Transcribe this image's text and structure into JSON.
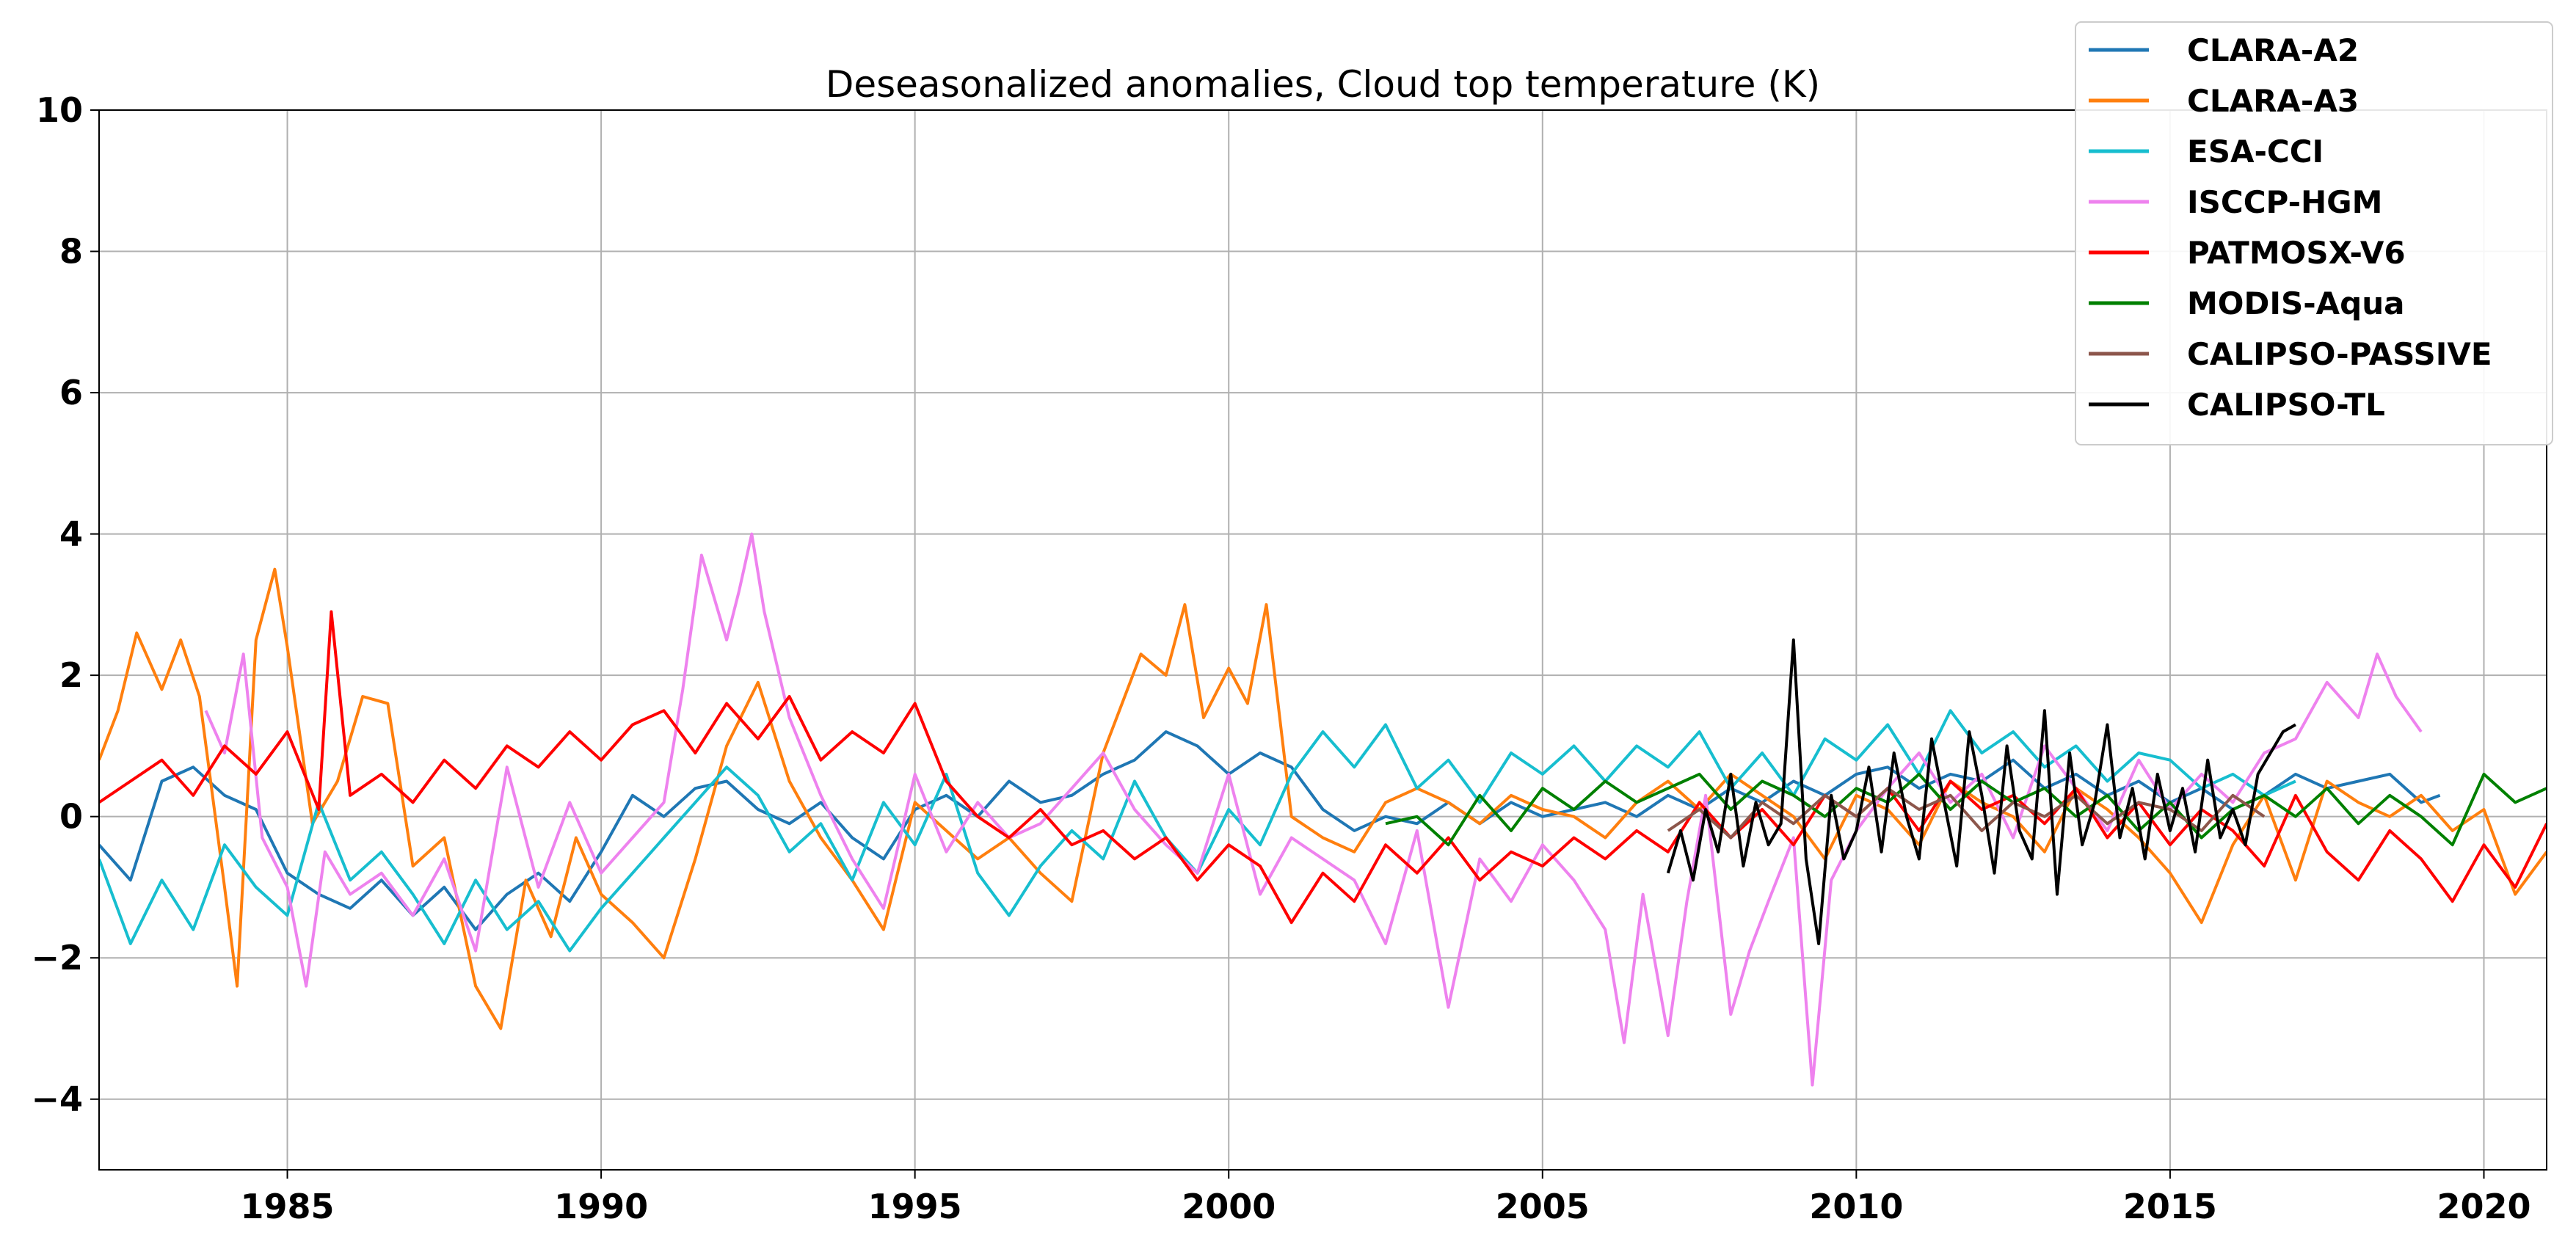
{
  "chart_data": {
    "type": "line",
    "title": "Deseasonalized anomalies, Cloud top temperature (K)",
    "xlabel": "",
    "ylabel": "",
    "xlim": [
      1982.0,
      2021.0
    ],
    "ylim": [
      -5,
      10
    ],
    "xticks": [
      1985,
      1990,
      1995,
      2000,
      2005,
      2010,
      2015,
      2020
    ],
    "yticks": [
      -4,
      -2,
      0,
      2,
      4,
      6,
      8,
      10
    ],
    "grid": true,
    "legend_position": "top-right",
    "series": [
      {
        "name": "CLARA-A2",
        "color": "#1f77b4",
        "x": [
          1982.0,
          1982.5,
          1983.0,
          1983.5,
          1984.0,
          1984.5,
          1985.0,
          1985.5,
          1986.0,
          1986.5,
          1987.0,
          1987.5,
          1988.0,
          1988.5,
          1989.0,
          1989.5,
          1990.0,
          1990.5,
          1991.0,
          1991.5,
          1992.0,
          1992.5,
          1993.0,
          1993.5,
          1994.0,
          1994.5,
          1995.0,
          1995.5,
          1996.0,
          1996.5,
          1997.0,
          1997.5,
          1998.0,
          1998.5,
          1999.0,
          1999.5,
          2000.0,
          2000.5,
          2001.0,
          2001.5,
          2002.0,
          2002.5,
          2003.0,
          2003.5,
          2004.0,
          2004.5,
          2005.0,
          2005.5,
          2006.0,
          2006.5,
          2007.0,
          2007.5,
          2008.0,
          2008.5,
          2009.0,
          2009.5,
          2010.0,
          2010.5,
          2011.0,
          2011.5,
          2012.0,
          2012.5,
          2013.0,
          2013.5,
          2014.0,
          2014.5,
          2015.0,
          2015.5,
          2016.0,
          2016.5,
          2017.0,
          2017.5,
          2018.0,
          2018.5,
          2019.0,
          2019.3
        ],
        "y": [
          -0.4,
          -0.9,
          0.5,
          0.7,
          0.3,
          0.1,
          -0.8,
          -1.1,
          -1.3,
          -0.9,
          -1.4,
          -1.0,
          -1.6,
          -1.1,
          -0.8,
          -1.2,
          -0.5,
          0.3,
          0.0,
          0.4,
          0.5,
          0.1,
          -0.1,
          0.2,
          -0.3,
          -0.6,
          0.1,
          0.3,
          0.0,
          0.5,
          0.2,
          0.3,
          0.6,
          0.8,
          1.2,
          1.0,
          0.6,
          0.9,
          0.7,
          0.1,
          -0.2,
          0.0,
          -0.1,
          0.2,
          -0.1,
          0.2,
          0.0,
          0.1,
          0.2,
          0.0,
          0.3,
          0.1,
          0.4,
          0.2,
          0.5,
          0.3,
          0.6,
          0.7,
          0.4,
          0.6,
          0.5,
          0.8,
          0.4,
          0.6,
          0.3,
          0.5,
          0.2,
          0.4,
          0.1,
          0.3,
          0.6,
          0.4,
          0.5,
          0.6,
          0.2,
          0.3
        ]
      },
      {
        "name": "CLARA-A3",
        "color": "#ff7f0e",
        "x": [
          1982.0,
          1982.3,
          1982.6,
          1983.0,
          1983.3,
          1983.6,
          1984.0,
          1984.2,
          1984.5,
          1984.8,
          1985.0,
          1985.4,
          1985.8,
          1986.2,
          1986.6,
          1987.0,
          1987.5,
          1988.0,
          1988.4,
          1988.8,
          1989.2,
          1989.6,
          1990.0,
          1990.5,
          1991.0,
          1991.5,
          1992.0,
          1992.5,
          1993.0,
          1993.5,
          1994.0,
          1994.5,
          1995.0,
          1995.5,
          1996.0,
          1996.5,
          1997.0,
          1997.5,
          1998.0,
          1998.3,
          1998.6,
          1999.0,
          1999.3,
          1999.6,
          2000.0,
          2000.3,
          2000.6,
          2001.0,
          2001.5,
          2002.0,
          2002.5,
          2003.0,
          2003.5,
          2004.0,
          2004.5,
          2005.0,
          2005.5,
          2006.0,
          2006.5,
          2007.0,
          2007.5,
          2008.0,
          2008.5,
          2009.0,
          2009.5,
          2010.0,
          2010.5,
          2011.0,
          2011.5,
          2012.0,
          2012.5,
          2013.0,
          2013.5,
          2014.0,
          2014.5,
          2015.0,
          2015.5,
          2016.0,
          2016.5,
          2017.0,
          2017.5,
          2018.0,
          2018.5,
          2019.0,
          2019.5,
          2020.0,
          2020.5,
          2021.0
        ],
        "y": [
          0.8,
          1.5,
          2.6,
          1.8,
          2.5,
          1.7,
          -1.0,
          -2.4,
          2.5,
          3.5,
          2.4,
          -0.1,
          0.5,
          1.7,
          1.6,
          -0.7,
          -0.3,
          -2.4,
          -3.0,
          -0.9,
          -1.7,
          -0.3,
          -1.1,
          -1.5,
          -2.0,
          -0.6,
          1.0,
          1.9,
          0.5,
          -0.3,
          -0.9,
          -1.6,
          0.2,
          -0.2,
          -0.6,
          -0.3,
          -0.8,
          -1.2,
          0.9,
          1.6,
          2.3,
          2.0,
          3.0,
          1.4,
          2.1,
          1.6,
          3.0,
          0.0,
          -0.3,
          -0.5,
          0.2,
          0.4,
          0.2,
          -0.1,
          0.3,
          0.1,
          0.0,
          -0.3,
          0.2,
          0.5,
          0.1,
          0.6,
          0.3,
          0.0,
          -0.6,
          0.3,
          0.1,
          -0.4,
          0.5,
          0.2,
          0.0,
          -0.5,
          0.4,
          0.1,
          -0.3,
          -0.8,
          -1.5,
          -0.4,
          0.3,
          -0.9,
          0.5,
          0.2,
          0.0,
          0.3,
          -0.2,
          0.1,
          -1.1,
          -0.5
        ]
      },
      {
        "name": "ESA-CCI",
        "color": "#17becf",
        "x": [
          1982.0,
          1982.5,
          1983.0,
          1983.5,
          1984.0,
          1984.5,
          1985.0,
          1985.5,
          1986.0,
          1986.5,
          1987.0,
          1987.5,
          1988.0,
          1988.5,
          1989.0,
          1989.5,
          1990.0,
          1990.5,
          1991.0,
          1991.5,
          1992.0,
          1992.5,
          1993.0,
          1993.5,
          1994.0,
          1994.5,
          1995.0,
          1995.5,
          1996.0,
          1996.5,
          1997.0,
          1997.5,
          1998.0,
          1998.5,
          1999.0,
          1999.5,
          2000.0,
          2000.5,
          2001.0,
          2001.5,
          2002.0,
          2002.5,
          2003.0,
          2003.5,
          2004.0,
          2004.5,
          2005.0,
          2005.5,
          2006.0,
          2006.5,
          2007.0,
          2007.5,
          2008.0,
          2008.5,
          2009.0,
          2009.5,
          2010.0,
          2010.5,
          2011.0,
          2011.5,
          2012.0,
          2012.5,
          2013.0,
          2013.5,
          2014.0,
          2014.5,
          2015.0,
          2015.5,
          2016.0,
          2016.5,
          2017.0
        ],
        "y": [
          -0.6,
          -1.8,
          -0.9,
          -1.6,
          -0.4,
          -1.0,
          -1.4,
          0.2,
          -0.9,
          -0.5,
          -1.1,
          -1.8,
          -0.9,
          -1.6,
          -1.2,
          -1.9,
          -1.3,
          -0.8,
          -0.3,
          0.2,
          0.7,
          0.3,
          -0.5,
          -0.1,
          -0.9,
          0.2,
          -0.4,
          0.6,
          -0.8,
          -1.4,
          -0.7,
          -0.2,
          -0.6,
          0.5,
          -0.3,
          -0.8,
          0.1,
          -0.4,
          0.6,
          1.2,
          0.7,
          1.3,
          0.4,
          0.8,
          0.2,
          0.9,
          0.6,
          1.0,
          0.5,
          1.0,
          0.7,
          1.2,
          0.4,
          0.9,
          0.3,
          1.1,
          0.8,
          1.3,
          0.6,
          1.5,
          0.9,
          1.2,
          0.7,
          1.0,
          0.5,
          0.9,
          0.8,
          0.4,
          0.6,
          0.3,
          0.5
        ]
      },
      {
        "name": "ISCCP-HGM",
        "color": "#ee82ee",
        "x": [
          1983.7,
          1984.0,
          1984.3,
          1984.6,
          1985.0,
          1985.3,
          1985.6,
          1986.0,
          1986.5,
          1987.0,
          1987.5,
          1988.0,
          1988.5,
          1989.0,
          1989.5,
          1990.0,
          1990.5,
          1991.0,
          1991.3,
          1991.6,
          1992.0,
          1992.2,
          1992.4,
          1992.6,
          1993.0,
          1993.5,
          1994.0,
          1994.5,
          1995.0,
          1995.5,
          1996.0,
          1996.5,
          1997.0,
          1997.5,
          1998.0,
          1998.5,
          1999.0,
          1999.5,
          2000.0,
          2000.5,
          2001.0,
          2001.5,
          2002.0,
          2002.5,
          2003.0,
          2003.5,
          2004.0,
          2004.5,
          2005.0,
          2005.5,
          2006.0,
          2006.3,
          2006.6,
          2007.0,
          2007.3,
          2007.6,
          2008.0,
          2008.3,
          2008.6,
          2009.0,
          2009.3,
          2009.6,
          2010.0,
          2010.5,
          2011.0,
          2011.5,
          2012.0,
          2012.5,
          2013.0,
          2013.5,
          2014.0,
          2014.5,
          2015.0,
          2015.5,
          2016.0,
          2016.5,
          2017.0,
          2017.5,
          2018.0,
          2018.3,
          2018.6,
          2019.0
        ],
        "y": [
          1.5,
          0.9,
          2.3,
          -0.3,
          -1.0,
          -2.4,
          -0.5,
          -1.1,
          -0.8,
          -1.4,
          -0.6,
          -1.9,
          0.7,
          -1.0,
          0.2,
          -0.8,
          -0.3,
          0.2,
          1.8,
          3.7,
          2.5,
          3.2,
          4.0,
          2.9,
          1.4,
          0.3,
          -0.6,
          -1.3,
          0.6,
          -0.5,
          0.2,
          -0.3,
          -0.1,
          0.4,
          0.9,
          0.1,
          -0.4,
          -0.8,
          0.6,
          -1.1,
          -0.3,
          -0.6,
          -0.9,
          -1.8,
          -0.2,
          -2.7,
          -0.6,
          -1.2,
          -0.4,
          -0.9,
          -1.6,
          -3.2,
          -1.1,
          -3.1,
          -1.2,
          0.3,
          -2.8,
          -1.9,
          -1.2,
          -0.3,
          -3.8,
          -0.9,
          -0.2,
          0.4,
          0.9,
          0.2,
          0.6,
          -0.3,
          1.0,
          0.4,
          -0.2,
          0.8,
          0.1,
          0.6,
          0.2,
          0.9,
          1.1,
          1.9,
          1.4,
          2.3,
          1.7,
          1.2
        ]
      },
      {
        "name": "PATMOSX-V6",
        "color": "#ff0000",
        "x": [
          1982.0,
          1982.5,
          1983.0,
          1983.5,
          1984.0,
          1984.5,
          1985.0,
          1985.5,
          1985.7,
          1986.0,
          1986.5,
          1987.0,
          1987.5,
          1988.0,
          1988.5,
          1989.0,
          1989.5,
          1990.0,
          1990.5,
          1991.0,
          1991.5,
          1992.0,
          1992.5,
          1993.0,
          1993.5,
          1994.0,
          1994.5,
          1995.0,
          1995.5,
          1996.0,
          1996.5,
          1997.0,
          1997.5,
          1998.0,
          1998.5,
          1999.0,
          1999.5,
          2000.0,
          2000.5,
          2001.0,
          2001.5,
          2002.0,
          2002.5,
          2003.0,
          2003.5,
          2004.0,
          2004.5,
          2005.0,
          2005.5,
          2006.0,
          2006.5,
          2007.0,
          2007.5,
          2008.0,
          2008.5,
          2009.0,
          2009.5,
          2010.0,
          2010.5,
          2011.0,
          2011.5,
          2012.0,
          2012.5,
          2013.0,
          2013.5,
          2014.0,
          2014.5,
          2015.0,
          2015.5,
          2016.0,
          2016.5,
          2017.0,
          2017.5,
          2018.0,
          2018.5,
          2019.0,
          2019.5,
          2020.0,
          2020.5,
          2021.0
        ],
        "y": [
          0.2,
          0.5,
          0.8,
          0.3,
          1.0,
          0.6,
          1.2,
          0.1,
          2.9,
          0.3,
          0.6,
          0.2,
          0.8,
          0.4,
          1.0,
          0.7,
          1.2,
          0.8,
          1.3,
          1.5,
          0.9,
          1.6,
          1.1,
          1.7,
          0.8,
          1.2,
          0.9,
          1.6,
          0.5,
          0.0,
          -0.3,
          0.1,
          -0.4,
          -0.2,
          -0.6,
          -0.3,
          -0.9,
          -0.4,
          -0.7,
          -1.5,
          -0.8,
          -1.2,
          -0.4,
          -0.8,
          -0.3,
          -0.9,
          -0.5,
          -0.7,
          -0.3,
          -0.6,
          -0.2,
          -0.5,
          0.2,
          -0.3,
          0.1,
          -0.4,
          0.3,
          0.0,
          0.4,
          -0.2,
          0.5,
          0.1,
          0.3,
          -0.1,
          0.4,
          -0.3,
          0.2,
          -0.4,
          0.1,
          -0.2,
          -0.7,
          0.3,
          -0.5,
          -0.9,
          -0.2,
          -0.6,
          -1.2,
          -0.4,
          -1.0,
          -0.1
        ]
      },
      {
        "name": "MODIS-Aqua",
        "color": "#008000",
        "x": [
          2002.5,
          2003.0,
          2003.5,
          2004.0,
          2004.5,
          2005.0,
          2005.5,
          2006.0,
          2006.5,
          2007.0,
          2007.5,
          2008.0,
          2008.5,
          2009.0,
          2009.5,
          2010.0,
          2010.5,
          2011.0,
          2011.5,
          2012.0,
          2012.5,
          2013.0,
          2013.5,
          2014.0,
          2014.5,
          2015.0,
          2015.5,
          2016.0,
          2016.5,
          2017.0,
          2017.5,
          2018.0,
          2018.5,
          2019.0,
          2019.5,
          2020.0,
          2020.5,
          2021.0
        ],
        "y": [
          -0.1,
          0.0,
          -0.4,
          0.3,
          -0.2,
          0.4,
          0.1,
          0.5,
          0.2,
          0.4,
          0.6,
          0.1,
          0.5,
          0.3,
          0.0,
          0.4,
          0.2,
          0.6,
          0.1,
          0.5,
          0.2,
          0.4,
          0.0,
          0.3,
          -0.2,
          0.2,
          -0.3,
          0.1,
          0.3,
          0.0,
          0.4,
          -0.1,
          0.3,
          0.0,
          -0.4,
          0.6,
          0.2,
          0.4
        ]
      },
      {
        "name": "CALIPSO-PASSIVE",
        "color": "#8c564b",
        "x": [
          2007.0,
          2007.5,
          2008.0,
          2008.5,
          2009.0,
          2009.5,
          2010.0,
          2010.5,
          2011.0,
          2011.5,
          2012.0,
          2012.5,
          2013.0,
          2013.5,
          2014.0,
          2014.5,
          2015.0,
          2015.5,
          2016.0,
          2016.5
        ],
        "y": [
          -0.2,
          0.1,
          -0.3,
          0.2,
          -0.1,
          0.3,
          0.0,
          0.4,
          0.1,
          0.3,
          -0.2,
          0.2,
          0.0,
          0.3,
          -0.1,
          0.2,
          0.1,
          -0.2,
          0.3,
          0.0
        ]
      },
      {
        "name": "CALIPSO-TL",
        "color": "#000000",
        "x": [
          2007.0,
          2007.2,
          2007.4,
          2007.6,
          2007.8,
          2008.0,
          2008.2,
          2008.4,
          2008.6,
          2008.8,
          2009.0,
          2009.2,
          2009.4,
          2009.6,
          2009.8,
          2010.0,
          2010.2,
          2010.4,
          2010.6,
          2010.8,
          2011.0,
          2011.2,
          2011.4,
          2011.6,
          2011.8,
          2012.0,
          2012.2,
          2012.4,
          2012.6,
          2012.8,
          2013.0,
          2013.2,
          2013.4,
          2013.6,
          2013.8,
          2014.0,
          2014.2,
          2014.4,
          2014.6,
          2014.8,
          2015.0,
          2015.2,
          2015.4,
          2015.6,
          2015.8,
          2016.0,
          2016.2,
          2016.4,
          2016.6,
          2016.8,
          2017.0
        ],
        "y": [
          -0.8,
          -0.2,
          -0.9,
          0.1,
          -0.5,
          0.6,
          -0.7,
          0.2,
          -0.4,
          -0.1,
          2.5,
          -0.6,
          -1.8,
          0.3,
          -0.6,
          -0.2,
          0.7,
          -0.5,
          0.9,
          0.0,
          -0.6,
          1.1,
          0.2,
          -0.7,
          1.2,
          0.3,
          -0.8,
          1.0,
          -0.2,
          -0.6,
          1.5,
          -1.1,
          0.9,
          -0.4,
          0.2,
          1.3,
          -0.3,
          0.4,
          -0.6,
          0.6,
          -0.2,
          0.4,
          -0.5,
          0.8,
          -0.3,
          0.1,
          -0.4,
          0.6,
          0.9,
          1.2,
          1.3
        ]
      }
    ]
  }
}
